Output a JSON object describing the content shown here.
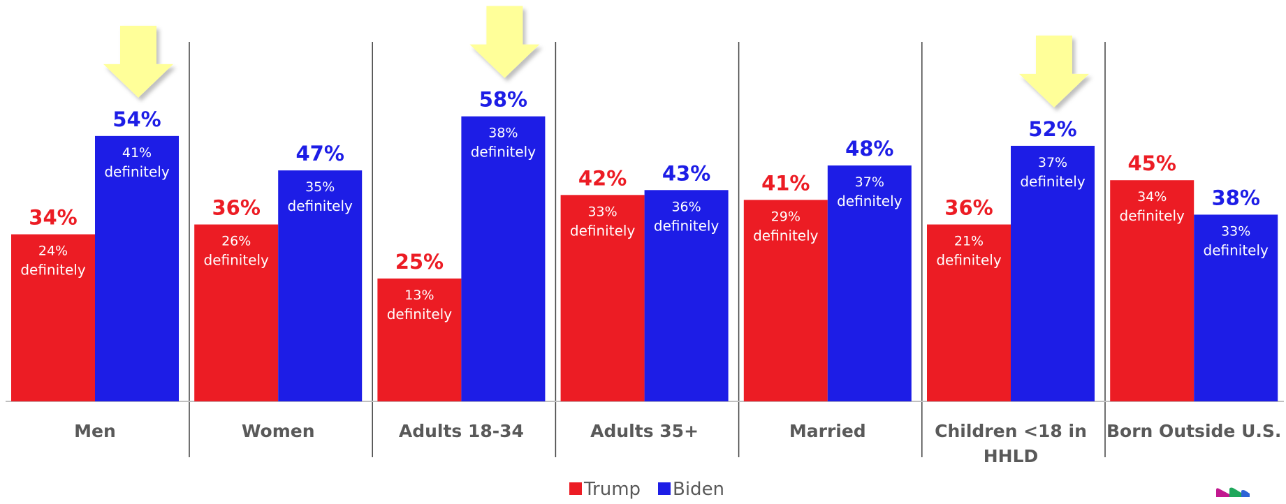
{
  "chart_data": {
    "type": "bar",
    "categories": [
      [
        "Men"
      ],
      [
        "Women"
      ],
      [
        "Adults 18-34"
      ],
      [
        "Adults 35+"
      ],
      [
        "Married"
      ],
      [
        "Children <18 in",
        "HHLD"
      ],
      [
        "Born Outside U.S."
      ]
    ],
    "series": [
      {
        "name": "Trump",
        "color": "#ec1c24",
        "values": [
          34,
          36,
          25,
          42,
          41,
          36,
          45
        ],
        "labels": [
          "34%",
          "36%",
          "25%",
          "42%",
          "41%",
          "36%",
          "45%"
        ],
        "definitely": [
          "24%",
          "26%",
          "13%",
          "33%",
          "29%",
          "21%",
          "34%"
        ]
      },
      {
        "name": "Biden",
        "color": "#1d1de6",
        "values": [
          54,
          47,
          58,
          43,
          48,
          52,
          38
        ],
        "labels": [
          "54%",
          "47%",
          "58%",
          "43%",
          "48%",
          "52%",
          "38%"
        ],
        "definitely": [
          "41%",
          "35%",
          "38%",
          "36%",
          "37%",
          "37%",
          "33%"
        ]
      }
    ],
    "definitely_word": "definitely",
    "highlighted_categories": [
      "Men",
      "Adults 18-34",
      "Children <18 in HHLD"
    ],
    "highlight_marker": "down-arrow",
    "highlight_color": "#ffff99",
    "legend": {
      "position": "bottom-center",
      "entries": [
        "Trump",
        "Biden"
      ]
    },
    "grid": false,
    "ylim": [
      0,
      60
    ]
  }
}
